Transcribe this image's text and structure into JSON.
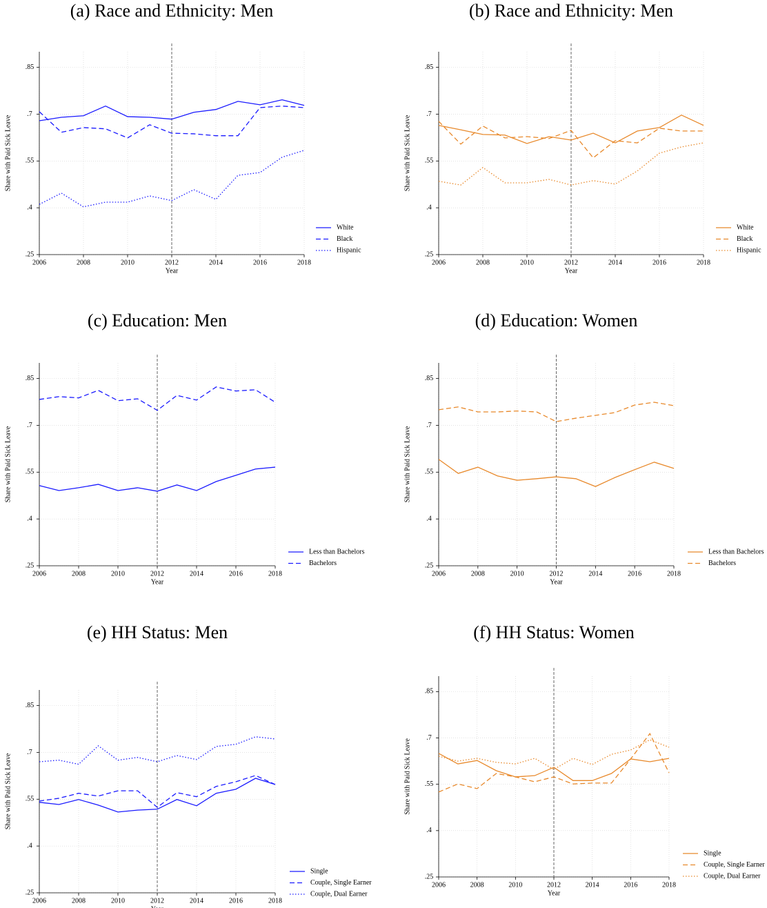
{
  "chart_data": [
    {
      "type": "line",
      "title": "(a) Race and Ethnicity: Men",
      "xlabel": "Year",
      "ylabel": "Share with Paid Sick Leave",
      "x": [
        2006,
        2007,
        2008,
        2009,
        2010,
        2011,
        2012,
        2013,
        2014,
        2015,
        2016,
        2017,
        2018
      ],
      "xlim": [
        2006,
        2018
      ],
      "xticks": [
        2006,
        2008,
        2010,
        2012,
        2014,
        2016,
        2018
      ],
      "ylim": [
        0.25,
        0.9
      ],
      "yticks": [
        {
          "value": 0.25,
          "label": ".25"
        },
        {
          "value": 0.4,
          "label": ".4"
        },
        {
          "value": 0.55,
          "label": ".55"
        },
        {
          "value": 0.7,
          "label": ".7"
        },
        {
          "value": 0.85,
          "label": ".85"
        }
      ],
      "vline": 2012,
      "grid": true,
      "legend": "right",
      "series": [
        {
          "name": "White",
          "color": "#1a1aff",
          "linestyle": "solid",
          "values": [
            0.679,
            0.69,
            0.695,
            0.726,
            0.692,
            0.69,
            0.684,
            0.706,
            0.715,
            0.741,
            0.73,
            0.746,
            0.728
          ]
        },
        {
          "name": "Black",
          "color": "#1a1aff",
          "linestyle": "dashed",
          "values": [
            0.708,
            0.642,
            0.657,
            0.653,
            0.624,
            0.666,
            0.639,
            0.637,
            0.631,
            0.631,
            0.721,
            0.726,
            0.721
          ]
        },
        {
          "name": "Hispanic",
          "color": "#1a1aff",
          "linestyle": "dotted",
          "values": [
            0.411,
            0.447,
            0.403,
            0.418,
            0.418,
            0.438,
            0.423,
            0.458,
            0.427,
            0.504,
            0.513,
            0.562,
            0.584
          ]
        }
      ]
    },
    {
      "type": "line",
      "title": "(b) Race and Ethnicity: Men",
      "xlabel": "Year",
      "ylabel": "Share with Paid Sick Leave",
      "x": [
        2006,
        2007,
        2008,
        2009,
        2010,
        2011,
        2012,
        2013,
        2014,
        2015,
        2016,
        2017,
        2018
      ],
      "xlim": [
        2006,
        2018
      ],
      "xticks": [
        2006,
        2008,
        2010,
        2012,
        2014,
        2016,
        2018
      ],
      "ylim": [
        0.25,
        0.9
      ],
      "yticks": [
        {
          "value": 0.25,
          "label": ".25"
        },
        {
          "value": 0.4,
          "label": ".4"
        },
        {
          "value": 0.55,
          "label": ".55"
        },
        {
          "value": 0.7,
          "label": ".7"
        },
        {
          "value": 0.85,
          "label": ".85"
        }
      ],
      "vline": 2012,
      "grid": true,
      "legend": "right",
      "series": [
        {
          "name": "White",
          "color": "#e8892b",
          "linestyle": "solid",
          "values": [
            0.664,
            0.65,
            0.635,
            0.633,
            0.606,
            0.628,
            0.617,
            0.639,
            0.608,
            0.646,
            0.657,
            0.697,
            0.664
          ]
        },
        {
          "name": "Black",
          "color": "#e8892b",
          "linestyle": "dashed",
          "values": [
            0.677,
            0.604,
            0.662,
            0.624,
            0.628,
            0.622,
            0.648,
            0.56,
            0.615,
            0.608,
            0.655,
            0.646,
            0.646
          ]
        },
        {
          "name": "Hispanic",
          "color": "#e8892b",
          "linestyle": "dotted",
          "values": [
            0.485,
            0.473,
            0.529,
            0.48,
            0.48,
            0.491,
            0.473,
            0.487,
            0.476,
            0.518,
            0.575,
            0.595,
            0.608
          ]
        }
      ]
    },
    {
      "type": "line",
      "title": "(c) Education: Men",
      "xlabel": "Year",
      "ylabel": "Share with Paid Sick Leave",
      "x": [
        2006,
        2007,
        2008,
        2009,
        2010,
        2011,
        2012,
        2013,
        2014,
        2015,
        2016,
        2017,
        2018
      ],
      "xlim": [
        2006,
        2018
      ],
      "xticks": [
        2006,
        2008,
        2010,
        2012,
        2014,
        2016,
        2018
      ],
      "ylim": [
        0.25,
        0.9
      ],
      "yticks": [
        {
          "value": 0.25,
          "label": ".25"
        },
        {
          "value": 0.4,
          "label": ".4"
        },
        {
          "value": 0.55,
          "label": ".55"
        },
        {
          "value": 0.7,
          "label": ".7"
        },
        {
          "value": 0.85,
          "label": ".85"
        }
      ],
      "vline": 2012,
      "grid": true,
      "legend": "right",
      "series": [
        {
          "name": "Less than Bachelors",
          "color": "#1a1aff",
          "linestyle": "solid",
          "values": [
            0.507,
            0.491,
            0.5,
            0.511,
            0.491,
            0.5,
            0.489,
            0.509,
            0.491,
            0.52,
            0.54,
            0.56,
            0.566
          ]
        },
        {
          "name": "Bachelors",
          "color": "#1a1aff",
          "linestyle": "dashed",
          "values": [
            0.783,
            0.792,
            0.788,
            0.812,
            0.779,
            0.785,
            0.748,
            0.796,
            0.781,
            0.823,
            0.81,
            0.814,
            0.774
          ]
        }
      ]
    },
    {
      "type": "line",
      "title": "(d) Education: Women",
      "xlabel": "Year",
      "ylabel": "Share with Paid Sick Leave",
      "x": [
        2006,
        2007,
        2008,
        2009,
        2010,
        2011,
        2012,
        2013,
        2014,
        2015,
        2016,
        2017,
        2018
      ],
      "xlim": [
        2006,
        2018
      ],
      "xticks": [
        2006,
        2008,
        2010,
        2012,
        2014,
        2016,
        2018
      ],
      "ylim": [
        0.25,
        0.9
      ],
      "yticks": [
        {
          "value": 0.25,
          "label": ".25"
        },
        {
          "value": 0.4,
          "label": ".4"
        },
        {
          "value": 0.55,
          "label": ".55"
        },
        {
          "value": 0.7,
          "label": ".7"
        },
        {
          "value": 0.85,
          "label": ".85"
        }
      ],
      "vline": 2012,
      "grid": true,
      "legend": "right",
      "series": [
        {
          "name": "Less than Bachelors",
          "color": "#e8892b",
          "linestyle": "solid",
          "values": [
            0.591,
            0.546,
            0.566,
            0.538,
            0.524,
            0.529,
            0.535,
            0.529,
            0.504,
            0.533,
            0.558,
            0.582,
            0.562
          ]
        },
        {
          "name": "Bachelors",
          "color": "#e8892b",
          "linestyle": "dashed",
          "values": [
            0.75,
            0.759,
            0.743,
            0.743,
            0.746,
            0.743,
            0.712,
            0.723,
            0.732,
            0.741,
            0.765,
            0.774,
            0.763
          ]
        }
      ]
    },
    {
      "type": "line",
      "title": "(e) HH Status: Men",
      "xlabel": "Year",
      "ylabel": "Share with Paid Sick Leave",
      "x": [
        2006,
        2007,
        2008,
        2009,
        2010,
        2011,
        2012,
        2013,
        2014,
        2015,
        2016,
        2017,
        2018
      ],
      "xlim": [
        2006,
        2018
      ],
      "xticks": [
        2006,
        2008,
        2010,
        2012,
        2014,
        2016,
        2018
      ],
      "ylim": [
        0.25,
        0.9
      ],
      "yticks": [
        {
          "value": 0.25,
          "label": ".25"
        },
        {
          "value": 0.4,
          "label": ".4"
        },
        {
          "value": 0.55,
          "label": ".55"
        },
        {
          "value": 0.7,
          "label": ".7"
        },
        {
          "value": 0.85,
          "label": ".85"
        }
      ],
      "vline": 2012,
      "grid": true,
      "legend": "right",
      "series": [
        {
          "name": "Single",
          "color": "#1a1aff",
          "linestyle": "solid",
          "values": [
            0.54,
            0.533,
            0.549,
            0.531,
            0.509,
            0.515,
            0.518,
            0.549,
            0.529,
            0.569,
            0.582,
            0.617,
            0.597
          ]
        },
        {
          "name": "Couple, Single Earner",
          "color": "#1a1aff",
          "linestyle": "dashed",
          "values": [
            0.544,
            0.553,
            0.569,
            0.56,
            0.577,
            0.577,
            0.524,
            0.571,
            0.558,
            0.591,
            0.606,
            0.626,
            0.597
          ]
        },
        {
          "name": "Couple, Dual Earner",
          "color": "#1a1aff",
          "linestyle": "dotted",
          "values": [
            0.67,
            0.675,
            0.662,
            0.721,
            0.675,
            0.684,
            0.67,
            0.69,
            0.677,
            0.719,
            0.726,
            0.75,
            0.743
          ]
        }
      ]
    },
    {
      "type": "line",
      "title": "(f) HH Status: Women",
      "xlabel": "Year",
      "ylabel": "Share with Paid Sick Leave",
      "x": [
        2006,
        2007,
        2008,
        2009,
        2010,
        2011,
        2012,
        2013,
        2014,
        2015,
        2016,
        2017,
        2018
      ],
      "xlim": [
        2006,
        2018
      ],
      "xticks": [
        2006,
        2008,
        2010,
        2012,
        2014,
        2016,
        2018
      ],
      "ylim": [
        0.25,
        0.9
      ],
      "yticks": [
        {
          "value": 0.25,
          "label": ".25"
        },
        {
          "value": 0.4,
          "label": ".4"
        },
        {
          "value": 0.55,
          "label": ".55"
        },
        {
          "value": 0.7,
          "label": ".7"
        },
        {
          "value": 0.85,
          "label": ".85"
        }
      ],
      "vline": 2012,
      "grid": true,
      "legend": "right",
      "series": [
        {
          "name": "Single",
          "color": "#e8892b",
          "linestyle": "solid",
          "values": [
            0.65,
            0.616,
            0.627,
            0.594,
            0.574,
            0.578,
            0.605,
            0.562,
            0.562,
            0.585,
            0.632,
            0.623,
            0.634
          ]
        },
        {
          "name": "Couple, Single Earner",
          "color": "#e8892b",
          "linestyle": "dashed",
          "values": [
            0.525,
            0.551,
            0.536,
            0.585,
            0.574,
            0.558,
            0.574,
            0.551,
            0.554,
            0.554,
            0.632,
            0.714,
            0.587
          ]
        },
        {
          "name": "Couple, Dual Earner",
          "color": "#e8892b",
          "linestyle": "dotted",
          "values": [
            0.641,
            0.625,
            0.634,
            0.621,
            0.616,
            0.634,
            0.598,
            0.634,
            0.614,
            0.647,
            0.661,
            0.694,
            0.67
          ]
        }
      ]
    }
  ]
}
